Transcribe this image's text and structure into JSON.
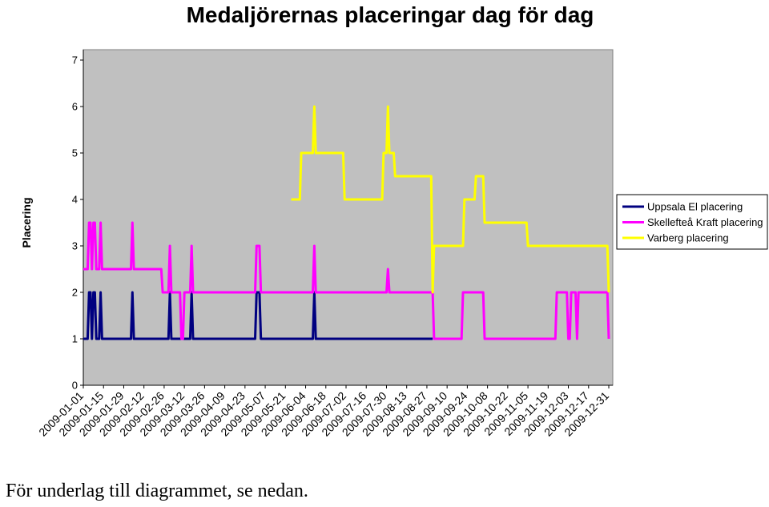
{
  "footer_note": "För underlag till diagrammet, se nedan.",
  "chart_data": {
    "type": "line",
    "title": "Medaljörernas placeringar dag för dag",
    "xlabel": "",
    "ylabel": "Placering",
    "ylim": [
      0,
      7
    ],
    "yticks": [
      0,
      1,
      2,
      3,
      4,
      5,
      6,
      7
    ],
    "xlim": [
      "2009-01-01",
      "2009-12-31"
    ],
    "x_tick_labels": [
      "2009-01-01",
      "2009-01-15",
      "2009-01-29",
      "2009-02-12",
      "2009-02-26",
      "2009-03-12",
      "2009-03-26",
      "2009-04-09",
      "2009-04-23",
      "2009-05-07",
      "2009-05-21",
      "2009-06-04",
      "2009-06-18",
      "2009-07-02",
      "2009-07-16",
      "2009-07-30",
      "2009-08-13",
      "2009-08-27",
      "2009-09-10",
      "2009-09-24",
      "2009-10-08",
      "2009-10-22",
      "2009-11-05",
      "2009-11-19",
      "2009-12-03",
      "2009-12-17",
      "2009-12-31"
    ],
    "grid": false,
    "legend_position": "right",
    "plot_background": "#C0C0C0",
    "series": [
      {
        "name": "Uppsala El placering",
        "color": "#000080",
        "points": [
          [
            "2009-01-01",
            1
          ],
          [
            "2009-01-04",
            1
          ],
          [
            "2009-01-05",
            2
          ],
          [
            "2009-01-06",
            2
          ],
          [
            "2009-01-07",
            1
          ],
          [
            "2009-01-08",
            2
          ],
          [
            "2009-01-09",
            2
          ],
          [
            "2009-01-10",
            1
          ],
          [
            "2009-01-12",
            1
          ],
          [
            "2009-01-13",
            2
          ],
          [
            "2009-01-14",
            1
          ],
          [
            "2009-02-03",
            1
          ],
          [
            "2009-02-04",
            2
          ],
          [
            "2009-02-05",
            1
          ],
          [
            "2009-03-01",
            1
          ],
          [
            "2009-03-02",
            2
          ],
          [
            "2009-03-03",
            1
          ],
          [
            "2009-03-16",
            1
          ],
          [
            "2009-03-17",
            2
          ],
          [
            "2009-03-18",
            1
          ],
          [
            "2009-04-30",
            1
          ],
          [
            "2009-05-01",
            2
          ],
          [
            "2009-05-03",
            2
          ],
          [
            "2009-05-04",
            1
          ],
          [
            "2009-06-09",
            1
          ],
          [
            "2009-06-10",
            2
          ],
          [
            "2009-06-11",
            1
          ],
          [
            "2009-08-31",
            1
          ]
        ]
      },
      {
        "name": "Skellefteå Kraft placering",
        "color": "#FF00FF",
        "points": [
          [
            "2009-01-01",
            2.5
          ],
          [
            "2009-01-04",
            2.5
          ],
          [
            "2009-01-05",
            3.5
          ],
          [
            "2009-01-06",
            3.5
          ],
          [
            "2009-01-07",
            2.5
          ],
          [
            "2009-01-08",
            3.5
          ],
          [
            "2009-01-09",
            3.5
          ],
          [
            "2009-01-10",
            2.5
          ],
          [
            "2009-01-12",
            2.5
          ],
          [
            "2009-01-13",
            3.5
          ],
          [
            "2009-01-14",
            2.5
          ],
          [
            "2009-02-03",
            2.5
          ],
          [
            "2009-02-04",
            3.5
          ],
          [
            "2009-02-05",
            2.5
          ],
          [
            "2009-02-24",
            2.5
          ],
          [
            "2009-02-25",
            2
          ],
          [
            "2009-03-01",
            2
          ],
          [
            "2009-03-02",
            3
          ],
          [
            "2009-03-03",
            2
          ],
          [
            "2009-03-09",
            2
          ],
          [
            "2009-03-10",
            1
          ],
          [
            "2009-03-11",
            1
          ],
          [
            "2009-03-12",
            2
          ],
          [
            "2009-03-16",
            2
          ],
          [
            "2009-03-17",
            3
          ],
          [
            "2009-03-18",
            2
          ],
          [
            "2009-04-30",
            2
          ],
          [
            "2009-05-01",
            3
          ],
          [
            "2009-05-03",
            3
          ],
          [
            "2009-05-04",
            2
          ],
          [
            "2009-06-09",
            2
          ],
          [
            "2009-06-10",
            3
          ],
          [
            "2009-06-11",
            2
          ],
          [
            "2009-07-30",
            2
          ],
          [
            "2009-07-31",
            2.5
          ],
          [
            "2009-08-01",
            2
          ],
          [
            "2009-08-31",
            2
          ],
          [
            "2009-09-01",
            1
          ],
          [
            "2009-09-20",
            1
          ],
          [
            "2009-09-21",
            2
          ],
          [
            "2009-10-05",
            2
          ],
          [
            "2009-10-06",
            1
          ],
          [
            "2009-11-24",
            1
          ],
          [
            "2009-11-25",
            2
          ],
          [
            "2009-12-02",
            2
          ],
          [
            "2009-12-03",
            1
          ],
          [
            "2009-12-04",
            1
          ],
          [
            "2009-12-05",
            2
          ],
          [
            "2009-12-08",
            2
          ],
          [
            "2009-12-09",
            1
          ],
          [
            "2009-12-10",
            2
          ],
          [
            "2009-12-30",
            2
          ],
          [
            "2009-12-31",
            1
          ]
        ]
      },
      {
        "name": "Varberg placering",
        "color": "#FFFF00",
        "points": [
          [
            "2009-05-25",
            4
          ],
          [
            "2009-05-31",
            4
          ],
          [
            "2009-06-01",
            5
          ],
          [
            "2009-06-09",
            5
          ],
          [
            "2009-06-10",
            6
          ],
          [
            "2009-06-11",
            5
          ],
          [
            "2009-06-30",
            5
          ],
          [
            "2009-07-01",
            4
          ],
          [
            "2009-07-27",
            4
          ],
          [
            "2009-07-28",
            5
          ],
          [
            "2009-07-30",
            5
          ],
          [
            "2009-07-31",
            6
          ],
          [
            "2009-08-01",
            5
          ],
          [
            "2009-08-04",
            5
          ],
          [
            "2009-08-05",
            4.5
          ],
          [
            "2009-08-30",
            4.5
          ],
          [
            "2009-08-31",
            2
          ],
          [
            "2009-09-01",
            3
          ],
          [
            "2009-09-21",
            3
          ],
          [
            "2009-09-22",
            4
          ],
          [
            "2009-09-29",
            4
          ],
          [
            "2009-09-30",
            4.5
          ],
          [
            "2009-10-05",
            4.5
          ],
          [
            "2009-10-06",
            3.5
          ],
          [
            "2009-11-04",
            3.5
          ],
          [
            "2009-11-05",
            3
          ],
          [
            "2009-12-30",
            3
          ],
          [
            "2009-12-31",
            2
          ]
        ]
      }
    ]
  }
}
